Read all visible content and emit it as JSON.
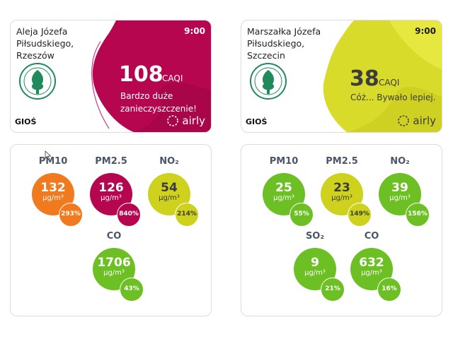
{
  "colors": {
    "bad": "#b5064f",
    "very_bad_orange": "#f07a1d",
    "moderate": "#cfd21c",
    "good": "#6cc024",
    "card_border": "#dcdcdc",
    "pollutant_label": "#4a5568"
  },
  "stations": [
    {
      "location_lines": [
        "Aleja Józefa",
        "Piłsudskiego,",
        "Rzeszów"
      ],
      "time": "9:00",
      "source": "GIOŚ",
      "caqi_value": "108",
      "caqi_unit": "CAQI",
      "description_lines": [
        "Bardzo duże",
        "zanieczyszczenie!"
      ],
      "brand": "airly",
      "logo_icon": "gios-logo-icon"
    },
    {
      "location_lines": [
        "Marszałka Józefa",
        "Piłsudskiego,",
        "Szczecin"
      ],
      "time": "9:00",
      "source": "GIOŚ",
      "caqi_value": "38",
      "caqi_unit": "CAQI",
      "description_lines": [
        "Cóż... Bywało lepiej."
      ],
      "brand": "airly",
      "logo_icon": "gios-logo-icon"
    }
  ],
  "pollutants_left": [
    {
      "name": "PM10",
      "value": "132",
      "unit": "µg/m³",
      "percent": "293%"
    },
    {
      "name": "PM2.5",
      "value": "126",
      "unit": "µg/m³",
      "percent": "840%"
    },
    {
      "name": "NO₂",
      "value": "54",
      "unit": "µg/m³",
      "percent": "214%"
    },
    {
      "name": "CO",
      "value": "1706",
      "unit": "µg/m³",
      "percent": "43%"
    }
  ],
  "pollutants_right": [
    {
      "name": "PM10",
      "value": "25",
      "unit": "µg/m³",
      "percent": "55%"
    },
    {
      "name": "PM2.5",
      "value": "23",
      "unit": "µg/m³",
      "percent": "149%"
    },
    {
      "name": "NO₂",
      "value": "39",
      "unit": "µg/m³",
      "percent": "156%"
    },
    {
      "name": "SO₂",
      "value": "9",
      "unit": "µg/m³",
      "percent": "21%"
    },
    {
      "name": "CO",
      "value": "632",
      "unit": "µg/m³",
      "percent": "16%"
    }
  ]
}
